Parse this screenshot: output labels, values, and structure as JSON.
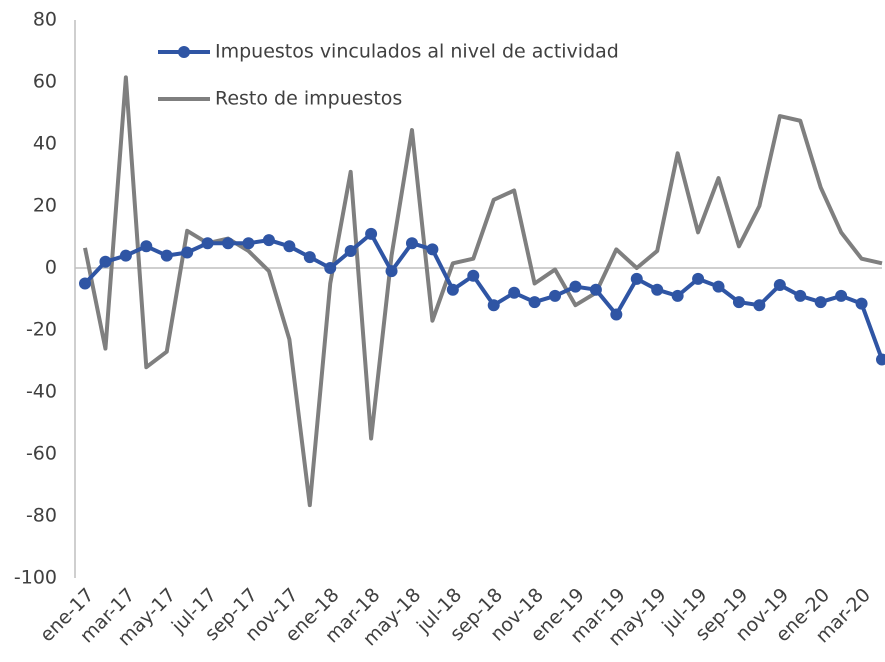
{
  "chart_data": {
    "type": "line",
    "categories": [
      "ene-17",
      null,
      "mar-17",
      null,
      "may-17",
      null,
      "jul-17",
      null,
      "sep-17",
      null,
      "nov-17",
      null,
      "ene-18",
      null,
      "mar-18",
      null,
      "may-18",
      null,
      "jul-18",
      null,
      "sep-18",
      null,
      "nov-18",
      null,
      "ene-19",
      null,
      "mar-19",
      null,
      "may-19",
      null,
      "jul-19",
      null,
      "sep-19",
      null,
      "nov-19",
      null,
      "ene-20",
      null,
      "mar-20",
      null
    ],
    "series": [
      {
        "name": "Impuestos vinculados al nivel de actividad",
        "color": "#2f55a4",
        "marker": true,
        "values": [
          -5,
          2,
          4,
          7,
          4,
          5,
          8,
          8,
          8,
          9,
          7,
          3.5,
          0,
          5.5,
          11,
          -1,
          8,
          6,
          -7,
          -2.5,
          -12,
          -8,
          -11,
          -9,
          -6,
          -7,
          -15,
          -3.5,
          -7,
          -9,
          -3.5,
          -6,
          -11,
          -12,
          -5.5,
          -9,
          -11,
          -9,
          -11.5,
          -29.5
        ]
      },
      {
        "name": "Resto de impuestos",
        "color": "#7f7f7f",
        "marker": false,
        "values": [
          6.5,
          -26,
          61.5,
          -32,
          -27,
          12,
          8,
          9.5,
          5.5,
          -1,
          -23,
          -76.5,
          -5,
          31,
          -55,
          4,
          44.5,
          -17,
          1.5,
          3,
          22,
          25,
          -5,
          -0.5,
          -12,
          -8,
          6,
          0,
          5.5,
          37,
          11.5,
          29,
          7,
          20,
          49,
          47.5,
          26,
          11.5,
          3,
          1.5
        ]
      }
    ],
    "ylim": [
      -100,
      80
    ],
    "yticks": [
      -100,
      -80,
      -60,
      -40,
      -20,
      0,
      20,
      40,
      60,
      80
    ]
  }
}
